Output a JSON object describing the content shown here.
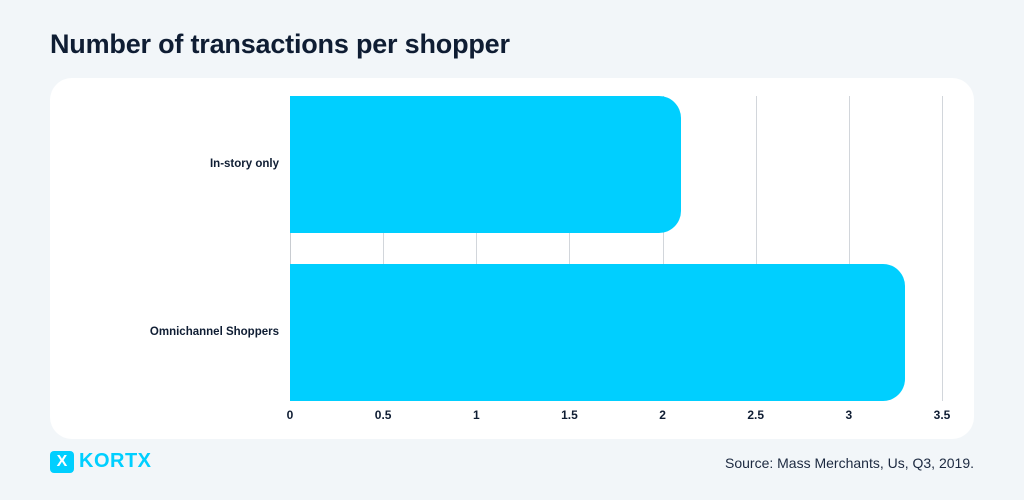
{
  "title": "Number of transactions per shopper",
  "footer": {
    "logo_mark": "X",
    "logo_text": "KORTX",
    "source": "Source: Mass Merchants, Us, Q3, 2019."
  },
  "colors": {
    "bar": "#00cfff",
    "background": "#f2f6f9",
    "text": "#0f1d33"
  },
  "chart_data": {
    "type": "bar",
    "orientation": "horizontal",
    "title": "Number of transactions per shopper",
    "categories": [
      "In-story only",
      "Omnichannel Shoppers"
    ],
    "values": [
      2.1,
      3.3
    ],
    "xlabel": "",
    "ylabel": "",
    "xlim": [
      0,
      3.5
    ],
    "xticks": [
      "0",
      "0.5",
      "1",
      "1.5",
      "2",
      "2.5",
      "3",
      "3.5"
    ],
    "grid": true,
    "legend": null
  }
}
